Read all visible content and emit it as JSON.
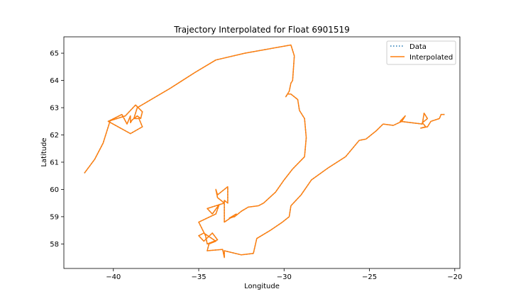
{
  "chart_data": {
    "type": "line",
    "title": "Trajectory Interpolated for Float 6901519",
    "xlabel": "Longitude",
    "ylabel": "Latitude",
    "xlim": [
      -42.9,
      -19.7
    ],
    "ylim": [
      57.1,
      65.6
    ],
    "xticks": [
      -40,
      -35,
      -30,
      -25,
      -20
    ],
    "yticks": [
      58,
      59,
      60,
      61,
      62,
      63,
      64,
      65
    ],
    "grid": false,
    "legend": "upper-right",
    "series": [
      {
        "name": "Data",
        "style": "dotted",
        "color": "#1f77b4",
        "points": [
          [
            -41.7,
            60.6
          ],
          [
            -41.1,
            61.1
          ],
          [
            -40.6,
            61.7
          ],
          [
            -40.2,
            62.5
          ],
          [
            -40.3,
            62.5
          ],
          [
            -39.5,
            62.75
          ],
          [
            -39.2,
            62.4
          ],
          [
            -39.0,
            62.7
          ],
          [
            -39.0,
            62.45
          ],
          [
            -38.9,
            62.55
          ],
          [
            -38.6,
            62.7
          ],
          [
            -38.4,
            62.6
          ],
          [
            -38.3,
            62.85
          ],
          [
            -38.7,
            63.1
          ],
          [
            -39.3,
            62.7
          ],
          [
            -40.3,
            62.5
          ],
          [
            -39.0,
            62.05
          ],
          [
            -38.3,
            62.3
          ],
          [
            -38.5,
            62.6
          ],
          [
            -38.8,
            62.6
          ],
          [
            -38.6,
            63.0
          ],
          [
            -36.7,
            63.7
          ],
          [
            -35.2,
            64.3
          ],
          [
            -34.0,
            64.75
          ],
          [
            -32.3,
            65.0
          ],
          [
            -29.6,
            65.3
          ],
          [
            -29.4,
            64.9
          ],
          [
            -29.5,
            64.0
          ],
          [
            -29.6,
            63.9
          ],
          [
            -29.7,
            63.6
          ],
          [
            -29.9,
            63.4
          ],
          [
            -29.8,
            63.5
          ],
          [
            -29.6,
            63.5
          ],
          [
            -29.2,
            63.3
          ],
          [
            -29.1,
            62.9
          ],
          [
            -28.8,
            62.6
          ],
          [
            -28.7,
            61.9
          ],
          [
            -28.8,
            61.2
          ],
          [
            -29.5,
            60.75
          ],
          [
            -30.0,
            60.35
          ],
          [
            -30.5,
            59.9
          ],
          [
            -31.2,
            59.5
          ],
          [
            -31.5,
            59.4
          ],
          [
            -32.1,
            59.35
          ],
          [
            -32.5,
            59.2
          ],
          [
            -32.9,
            59.0
          ],
          [
            -33.2,
            58.95
          ],
          [
            -32.8,
            59.1
          ],
          [
            -33.5,
            58.8
          ],
          [
            -33.5,
            59.6
          ],
          [
            -33.3,
            59.5
          ],
          [
            -33.3,
            60.1
          ],
          [
            -33.9,
            59.8
          ],
          [
            -34.0,
            60.0
          ],
          [
            -33.9,
            59.7
          ],
          [
            -33.5,
            59.5
          ],
          [
            -34.5,
            59.3
          ],
          [
            -34.2,
            59.1
          ],
          [
            -33.8,
            59.45
          ],
          [
            -34.0,
            59.1
          ],
          [
            -35.0,
            58.8
          ],
          [
            -34.6,
            58.3
          ],
          [
            -34.5,
            58.0
          ],
          [
            -33.9,
            58.15
          ],
          [
            -34.2,
            58.4
          ],
          [
            -34.7,
            58.1
          ],
          [
            -35.0,
            58.3
          ],
          [
            -34.7,
            58.4
          ],
          [
            -34.0,
            58.1
          ],
          [
            -34.4,
            58.0
          ],
          [
            -34.5,
            57.75
          ],
          [
            -33.6,
            57.8
          ],
          [
            -33.5,
            57.5
          ],
          [
            -33.5,
            57.75
          ],
          [
            -32.5,
            57.6
          ],
          [
            -31.8,
            57.65
          ],
          [
            -31.6,
            58.2
          ],
          [
            -30.8,
            58.5
          ],
          [
            -30.1,
            58.8
          ],
          [
            -29.7,
            59.0
          ],
          [
            -29.6,
            59.4
          ],
          [
            -29.0,
            59.8
          ],
          [
            -28.4,
            60.35
          ],
          [
            -27.4,
            60.8
          ],
          [
            -26.4,
            61.2
          ],
          [
            -25.6,
            61.8
          ],
          [
            -25.2,
            61.85
          ],
          [
            -24.6,
            62.15
          ],
          [
            -24.2,
            62.4
          ],
          [
            -23.6,
            62.35
          ],
          [
            -23.1,
            62.5
          ],
          [
            -22.9,
            62.7
          ],
          [
            -23.2,
            62.5
          ],
          [
            -21.9,
            62.4
          ],
          [
            -21.8,
            62.8
          ],
          [
            -21.6,
            62.6
          ],
          [
            -21.9,
            62.45
          ],
          [
            -21.7,
            62.3
          ],
          [
            -22.0,
            62.25
          ],
          [
            -21.6,
            62.3
          ],
          [
            -21.4,
            62.5
          ],
          [
            -20.9,
            62.6
          ],
          [
            -20.8,
            62.75
          ],
          [
            -20.6,
            62.75
          ]
        ]
      },
      {
        "name": "Interpolated",
        "style": "solid",
        "color": "#ff7f0e",
        "same_as": "Data"
      }
    ]
  }
}
